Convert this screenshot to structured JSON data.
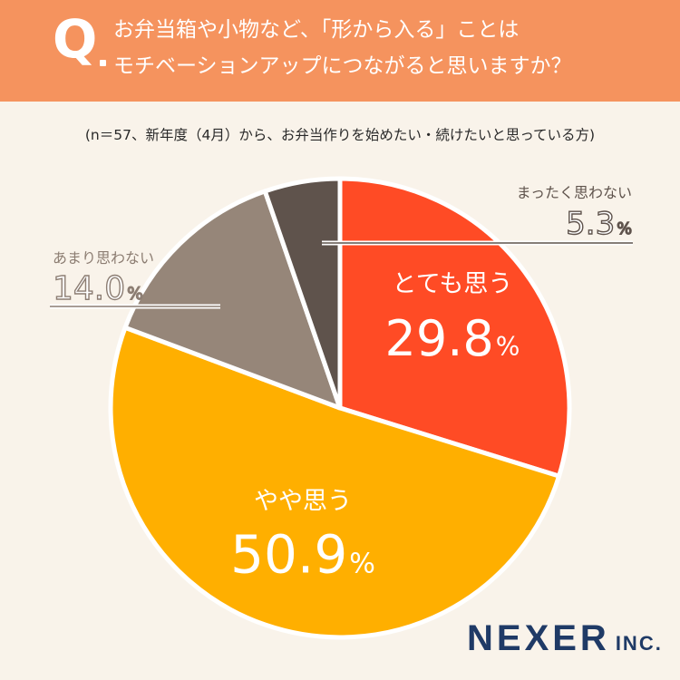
{
  "header": {
    "q_mark": "Q",
    "line1": "お弁当箱や小物など、「形から入る」ことは",
    "line2": "モチベーションアップにつながると思いますか？",
    "bg_color": "#f5935e"
  },
  "subtitle": "(n＝57、新年度（4月）から、お弁当作りを始めたい・続けたいと思っている方)",
  "brand": {
    "name": "NEXER",
    "suffix": "INC."
  },
  "chart_data": {
    "type": "pie",
    "start_angle": "12 o'clock",
    "direction": "clockwise",
    "slices": [
      {
        "label": "とても思う",
        "value": 29.8,
        "display_value": "29.8",
        "unit": "%",
        "color": "#ff4b25",
        "label_style": "inside"
      },
      {
        "label": "やや思う",
        "value": 50.9,
        "display_value": "50.9",
        "unit": "%",
        "color": "#ffaf00",
        "label_style": "inside"
      },
      {
        "label": "あまり思わない",
        "value": 14.0,
        "display_value": "14.0",
        "unit": "%",
        "color": "#968679",
        "label_style": "callout-left"
      },
      {
        "label": "まったく思わない",
        "value": 5.3,
        "display_value": "5.3",
        "unit": "%",
        "color": "#5f534c",
        "label_style": "callout-right"
      }
    ]
  }
}
